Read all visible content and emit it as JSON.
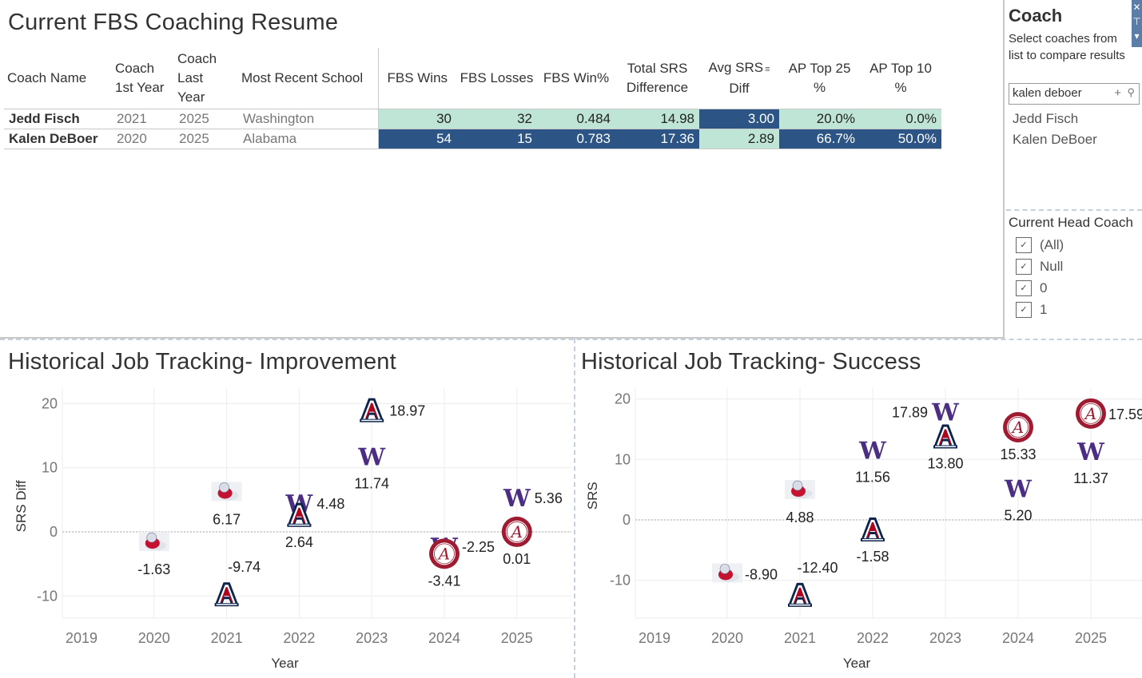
{
  "resume": {
    "title": "Current FBS Coaching Resume",
    "columns": [
      "Coach Name",
      "Coach 1st Year",
      "Coach Last Year",
      "Most Recent School",
      "FBS Wins",
      "FBS Losses",
      "FBS Win%",
      "Total SRS Difference",
      "Avg SRS Diff",
      "AP Top 25 %",
      "AP Top 10 %"
    ],
    "header_lines": {
      "c1a": "Coach",
      "c1b": "1st Year",
      "c2a": "Coach",
      "c2b": "Last",
      "c2c": "Year",
      "c7a": "Total SRS",
      "c7b": "Difference",
      "c8a": "Avg SRS",
      "c8b": "Diff",
      "c9a": "AP Top 25",
      "c9b": "%",
      "c10a": "AP Top 10",
      "c10b": "%"
    },
    "sort_icon": "sort-descending-icon",
    "rows": [
      {
        "name": "Jedd Fisch",
        "first": "2021",
        "last": "2025",
        "school": "Washington",
        "wins": "30",
        "losses": "32",
        "winpct": "0.484",
        "total_srs": "14.98",
        "avg_srs": "3.00",
        "ap25": "20.0%",
        "ap10": "0.0%"
      },
      {
        "name": "Kalen DeBoer",
        "first": "2020",
        "last": "2025",
        "school": "Alabama",
        "wins": "54",
        "losses": "15",
        "winpct": "0.783",
        "total_srs": "17.36",
        "avg_srs": "2.89",
        "ap25": "66.7%",
        "ap10": "50.0%"
      }
    ],
    "colors": {
      "light": "#bfe5d7",
      "dark": "#2c5585"
    }
  },
  "coach_filter": {
    "title": "Coach",
    "description": "Select coaches from list to compare results",
    "search_value": "kalen deboer",
    "plus_glyph": "+",
    "search_glyph": "⌕",
    "items": [
      "Jedd Fisch",
      "Kalen DeBoer"
    ],
    "controls": {
      "close": "✕",
      "pin": "⊤",
      "menu": "▾"
    }
  },
  "head_coach_filter": {
    "title": "Current Head Coach",
    "options": [
      {
        "label": "(All)",
        "checked": true
      },
      {
        "label": "Null",
        "checked": true
      },
      {
        "label": "0",
        "checked": true
      },
      {
        "label": "1",
        "checked": true
      }
    ]
  },
  "chart_data": [
    {
      "type": "scatter",
      "title": "Historical Job Tracking- Improvement",
      "xlabel": "Year",
      "ylabel": "SRS Diff",
      "xlim": [
        2019,
        2026
      ],
      "ylim": [
        -13.5,
        22
      ],
      "xticks": [
        2019,
        2020,
        2021,
        2022,
        2023,
        2024,
        2025,
        2026
      ],
      "yticks": [
        -10,
        0,
        10,
        20
      ],
      "grid": true,
      "reference_line": 0,
      "points": [
        {
          "x": 2020,
          "y": -1.63,
          "school": "Fresno State",
          "label": "-1.63",
          "label_pos": "below"
        },
        {
          "x": 2021,
          "y": 6.17,
          "school": "Fresno State",
          "label": "6.17",
          "label_pos": "below"
        },
        {
          "x": 2021,
          "y": -9.74,
          "school": "Arizona",
          "label": "-9.74",
          "label_pos": "above-right"
        },
        {
          "x": 2022,
          "y": 4.48,
          "school": "Washington",
          "label": "4.48",
          "label_pos": "right"
        },
        {
          "x": 2022,
          "y": 2.64,
          "school": "Arizona",
          "label": "2.64",
          "label_pos": "below"
        },
        {
          "x": 2023,
          "y": 18.97,
          "school": "Arizona",
          "label": "18.97",
          "label_pos": "right"
        },
        {
          "x": 2023,
          "y": 11.74,
          "school": "Washington",
          "label": "11.74",
          "label_pos": "below"
        },
        {
          "x": 2024,
          "y": -2.25,
          "school": "Washington",
          "label": "-2.25",
          "label_pos": "right"
        },
        {
          "x": 2024,
          "y": -3.41,
          "school": "Alabama",
          "label": "-3.41",
          "label_pos": "below"
        },
        {
          "x": 2025,
          "y": 5.36,
          "school": "Washington",
          "label": "5.36",
          "label_pos": "right"
        },
        {
          "x": 2025,
          "y": 0.01,
          "school": "Alabama",
          "label": "0.01",
          "label_pos": "below"
        }
      ]
    },
    {
      "type": "scatter",
      "title": "Historical Job Tracking- Success",
      "xlabel": "Year",
      "ylabel": "SRS",
      "xlim": [
        2019,
        2026
      ],
      "ylim": [
        -16.3,
        22.3
      ],
      "xticks": [
        2019,
        2020,
        2021,
        2022,
        2023,
        2024,
        2025,
        2026
      ],
      "yticks": [
        -10,
        0,
        10,
        20
      ],
      "grid": true,
      "reference_line": 0,
      "points": [
        {
          "x": 2020,
          "y": -8.9,
          "school": "Fresno State",
          "label": "-8.90",
          "label_pos": "right"
        },
        {
          "x": 2021,
          "y": 4.88,
          "school": "Fresno State",
          "label": "4.88",
          "label_pos": "below"
        },
        {
          "x": 2021,
          "y": -12.4,
          "school": "Arizona",
          "label": "-12.40",
          "label_pos": "above-right"
        },
        {
          "x": 2022,
          "y": 11.56,
          "school": "Washington",
          "label": "11.56",
          "label_pos": "below"
        },
        {
          "x": 2022,
          "y": -1.58,
          "school": "Arizona",
          "label": "-1.58",
          "label_pos": "below"
        },
        {
          "x": 2023,
          "y": 17.89,
          "school": "Washington",
          "label": "17.89",
          "label_pos": "left"
        },
        {
          "x": 2023,
          "y": 13.8,
          "school": "Arizona",
          "label": "13.80",
          "label_pos": "below"
        },
        {
          "x": 2024,
          "y": 15.33,
          "school": "Alabama",
          "label": "15.33",
          "label_pos": "below"
        },
        {
          "x": 2024,
          "y": 5.2,
          "school": "Washington",
          "label": "5.20",
          "label_pos": "below"
        },
        {
          "x": 2025,
          "y": 17.59,
          "school": "Alabama",
          "label": "17.59",
          "label_pos": "right"
        },
        {
          "x": 2025,
          "y": 11.37,
          "school": "Washington",
          "label": "11.37",
          "label_pos": "below"
        }
      ]
    }
  ],
  "school_icons": {
    "Fresno State": "bulldog-logo-icon",
    "Arizona": "arizona-a-logo-icon",
    "Washington": "washington-w-logo-icon",
    "Alabama": "alabama-script-a-logo-icon"
  },
  "school_colors": {
    "Arizona": {
      "navy": "#0c234b",
      "red": "#ab0520"
    },
    "Washington": "#4b2e83",
    "Alabama": "#9e1b32",
    "Fresno State": "#c41230"
  }
}
